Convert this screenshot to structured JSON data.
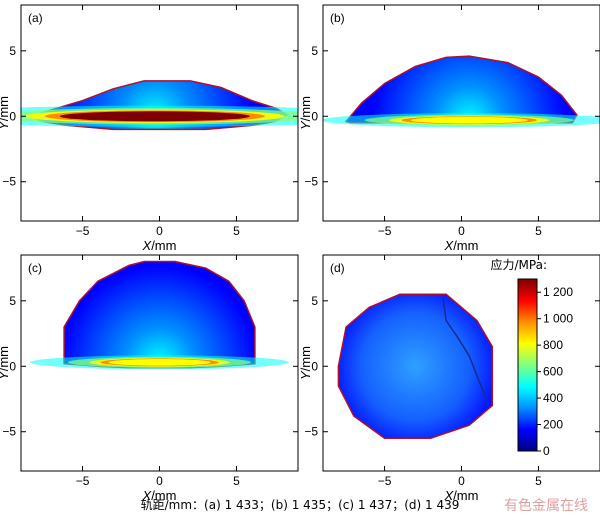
{
  "colors": {
    "scale": [
      "#00007f",
      "#0000ff",
      "#0090ff",
      "#00ffff",
      "#80ff80",
      "#ffff00",
      "#ff8c00",
      "#ff0000",
      "#7f0000"
    ],
    "outline": "#b0102a",
    "watermark": "#e0a0a0"
  },
  "chart_data": [
    {
      "type": "heatmap",
      "panel_label": "(a)",
      "xlabel": "X/mm",
      "ylabel": "Y/mm",
      "xlim": [
        -9,
        9
      ],
      "ylim": [
        -8,
        8.5
      ],
      "xticks": [
        -5,
        0,
        5
      ],
      "yticks": [
        -5,
        0,
        5
      ],
      "contact_outline": [
        [
          -8.3,
          0
        ],
        [
          -7,
          0.5
        ],
        [
          -5,
          1.2
        ],
        [
          -3,
          2.1
        ],
        [
          -1,
          2.7
        ],
        [
          2,
          2.7
        ],
        [
          4,
          2.2
        ],
        [
          6,
          1.2
        ],
        [
          7.6,
          0.6
        ],
        [
          8.3,
          0.1
        ],
        [
          7.5,
          -0.4
        ],
        [
          6,
          -0.7
        ],
        [
          3,
          -1
        ],
        [
          -3,
          -1
        ],
        [
          -6,
          -0.7
        ],
        [
          -7.6,
          -0.4
        ]
      ],
      "hot_zone": {
        "center": [
          -0.3,
          0
        ],
        "radius": [
          6.5,
          0.45
        ],
        "stress_mpa": 1250
      }
    },
    {
      "type": "heatmap",
      "panel_label": "(b)",
      "xlabel": "X/mm",
      "ylabel": "Y/mm",
      "xlim": [
        -9,
        9
      ],
      "ylim": [
        -8,
        8.5
      ],
      "xticks": [
        -5,
        0,
        5
      ],
      "yticks": [
        -5,
        0,
        5
      ],
      "contact_outline": [
        [
          -7.5,
          -0.4
        ],
        [
          -6.5,
          1
        ],
        [
          -5,
          2.5
        ],
        [
          -3,
          3.8
        ],
        [
          -1,
          4.5
        ],
        [
          0.5,
          4.6
        ],
        [
          3,
          4.1
        ],
        [
          5,
          3
        ],
        [
          6.5,
          1.6
        ],
        [
          7.5,
          0.1
        ],
        [
          7.2,
          -0.5
        ],
        [
          -7.2,
          -0.5
        ]
      ],
      "hot_zone": {
        "center": [
          0.5,
          -0.3
        ],
        "radius": [
          4,
          0.3
        ],
        "stress_mpa": 850
      }
    },
    {
      "type": "heatmap",
      "panel_label": "(c)",
      "xlabel": "X/mm",
      "ylabel": "Y/mm",
      "xlim": [
        -9,
        9
      ],
      "ylim": [
        -8,
        8.5
      ],
      "xticks": [
        -5,
        0,
        5
      ],
      "yticks": [
        -5,
        0,
        5
      ],
      "contact_outline": [
        [
          -6.2,
          0.2
        ],
        [
          -6.2,
          3
        ],
        [
          -5.2,
          5
        ],
        [
          -4,
          6.5
        ],
        [
          -2,
          7.7
        ],
        [
          -1,
          8
        ],
        [
          1,
          8
        ],
        [
          3,
          7.5
        ],
        [
          4.5,
          6.5
        ],
        [
          5.5,
          5
        ],
        [
          6.2,
          3
        ],
        [
          6.2,
          0.2
        ],
        [
          4,
          0
        ],
        [
          2,
          -0.1
        ],
        [
          -2,
          -0.1
        ],
        [
          -4,
          0
        ]
      ],
      "hot_zone": {
        "center": [
          0,
          0.3
        ],
        "radius": [
          3.5,
          0.3
        ],
        "stress_mpa": 750
      }
    },
    {
      "type": "heatmap",
      "panel_label": "(d)",
      "xlabel": "X/mm",
      "ylabel": "Y/mm",
      "xlim": [
        -9,
        9
      ],
      "ylim": [
        -8,
        8.5
      ],
      "xticks": [
        -5,
        0,
        5
      ],
      "yticks": [
        -5,
        0,
        5
      ],
      "contact_outline": [
        [
          -8,
          0
        ],
        [
          -7.5,
          3
        ],
        [
          -6,
          4.5
        ],
        [
          -4,
          5.5
        ],
        [
          -1,
          5.5
        ],
        [
          1,
          3.5
        ],
        [
          2,
          1.5
        ],
        [
          2,
          -3
        ],
        [
          0.5,
          -4.5
        ],
        [
          -2,
          -5.5
        ],
        [
          -5,
          -5.5
        ],
        [
          -7,
          -3.8
        ],
        [
          -8,
          -1.5
        ]
      ],
      "hot_zone": null,
      "colorbar": {
        "title": "应力/MPa:",
        "range": [
          0,
          1300
        ],
        "ticks": [
          0,
          200,
          400,
          600,
          800,
          1000,
          1200
        ],
        "tick_labels": [
          "0",
          "200",
          "400",
          "600",
          "800",
          "1 000",
          "1 200"
        ]
      }
    }
  ],
  "caption": "轨距/mm：(a) 1 433；(b) 1 435；(c) 1 437；(d) 1 439",
  "watermark": "有色金属在线"
}
